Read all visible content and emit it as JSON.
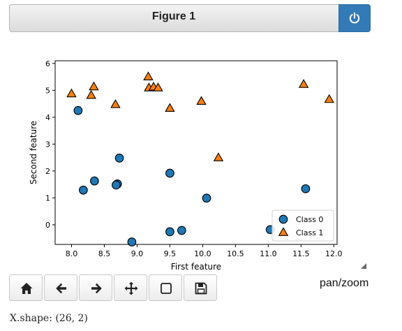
{
  "figure": {
    "title": "Figure 1"
  },
  "toolbar": {
    "buttons": [
      {
        "icon": "home-icon"
      },
      {
        "icon": "back-arrow-icon"
      },
      {
        "icon": "forward-arrow-icon"
      },
      {
        "icon": "pan-move-icon"
      },
      {
        "icon": "zoom-rect-icon"
      },
      {
        "icon": "save-icon"
      }
    ],
    "mode": "pan/zoom"
  },
  "output": {
    "text": "X.shape: (26, 2)"
  },
  "chart_data": {
    "type": "scatter",
    "xlabel": "First feature",
    "ylabel": "Second feature",
    "xlim": [
      7.75,
      12.05
    ],
    "ylim": [
      -0.73,
      6.1
    ],
    "xticks": [
      "8.0",
      "8.5",
      "9.0",
      "9.5",
      "10.0",
      "10.5",
      "11.0",
      "11.5",
      "12.0"
    ],
    "yticks": [
      "0",
      "1",
      "2",
      "3",
      "4",
      "5",
      "6"
    ],
    "legend": "lower-right",
    "series": [
      {
        "name": "Class 0",
        "marker": "circle",
        "color": "#1f77b4",
        "points": [
          [
            8.1,
            4.25
          ],
          [
            8.73,
            2.48
          ],
          [
            9.5,
            1.92
          ],
          [
            8.35,
            1.63
          ],
          [
            8.7,
            1.52
          ],
          [
            8.68,
            1.48
          ],
          [
            8.18,
            1.29
          ],
          [
            10.06,
            0.99
          ],
          [
            11.57,
            1.34
          ],
          [
            9.68,
            -0.21
          ],
          [
            9.5,
            -0.26
          ],
          [
            8.92,
            -0.64
          ],
          [
            11.03,
            -0.18
          ]
        ]
      },
      {
        "name": "Class 1",
        "marker": "triangle",
        "color": "#ff7f0e",
        "points": [
          [
            8.0,
            4.87
          ],
          [
            8.3,
            4.81
          ],
          [
            8.34,
            5.13
          ],
          [
            8.67,
            4.47
          ],
          [
            9.17,
            5.5
          ],
          [
            9.18,
            5.09
          ],
          [
            9.25,
            5.12
          ],
          [
            9.32,
            5.09
          ],
          [
            9.5,
            4.33
          ],
          [
            9.98,
            4.59
          ],
          [
            10.24,
            2.49
          ],
          [
            11.54,
            5.22
          ],
          [
            11.93,
            4.66
          ]
        ]
      }
    ]
  }
}
